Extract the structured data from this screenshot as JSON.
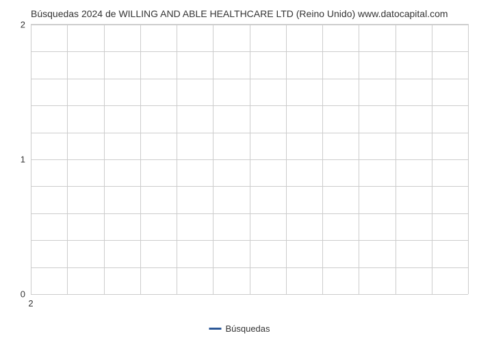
{
  "chart": {
    "type": "line",
    "title": "Búsquedas 2024 de WILLING AND ABLE HEALTHCARE LTD (Reino Unido) www.datocapital.com",
    "title_fontsize": 14,
    "title_color": "#333333",
    "background_color": "#ffffff",
    "grid_color": "#cccccc",
    "y_axis": {
      "min": 0,
      "max": 2,
      "major_ticks": [
        0,
        1,
        2
      ],
      "minor_tick_count_between": 4,
      "label_fontsize": 13,
      "label_color": "#333333"
    },
    "x_axis": {
      "min": 2,
      "max": 2,
      "major_ticks": [
        2
      ],
      "column_count": 12,
      "label_fontsize": 13,
      "label_color": "#333333"
    },
    "series": [
      {
        "name": "Búsquedas",
        "color": "#2b5797",
        "data": []
      }
    ],
    "legend": {
      "position": "bottom-center",
      "fontsize": 13,
      "items": [
        {
          "label": "Búsquedas",
          "color": "#2b5797"
        }
      ]
    }
  }
}
